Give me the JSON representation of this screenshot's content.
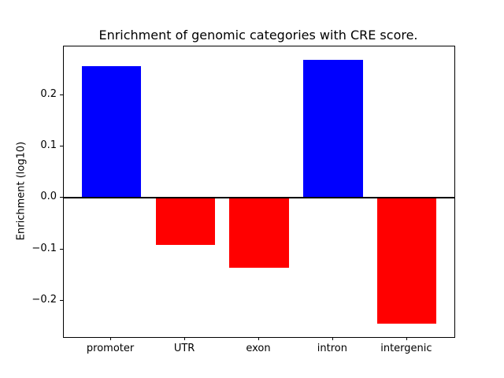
{
  "figure": {
    "title": "Enrichment of genomic categories with CRE score.",
    "ylabel": "Enrichment (log10)"
  },
  "chart_data": {
    "type": "bar",
    "title": "Enrichment of genomic categories with CRE score.",
    "xlabel": "",
    "ylabel": "Enrichment (log10)",
    "categories": [
      "promoter",
      "UTR",
      "exon",
      "intron",
      "intergenic"
    ],
    "values": [
      0.256,
      -0.091,
      -0.136,
      0.268,
      -0.244
    ],
    "bar_colors": [
      "#0000ff",
      "#ff0000",
      "#ff0000",
      "#0000ff",
      "#ff0000"
    ],
    "positive_color": "#0000ff",
    "negative_color": "#ff0000",
    "bar_width": 0.8,
    "xlim": [
      -0.64,
      4.64
    ],
    "ylim": [
      -0.27,
      0.294
    ],
    "yticks": [
      -0.2,
      -0.1,
      0.0,
      0.1,
      0.2
    ],
    "ytick_labels": [
      "−0.2",
      "−0.1",
      "0.0",
      "0.1",
      "0.2"
    ],
    "zero_line": true,
    "zero_line_color": "#000000",
    "grid": false,
    "legend": null,
    "spine_color": "#000000",
    "background_color": "#ffffff"
  }
}
